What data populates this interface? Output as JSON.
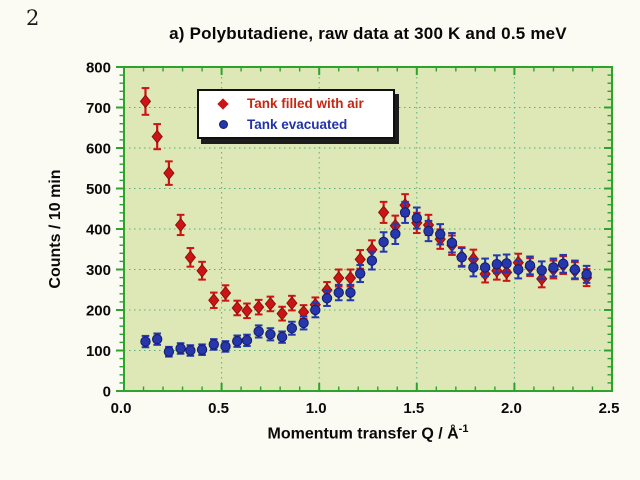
{
  "page_number": "2",
  "chart": {
    "title": "a) Polybutadiene, raw data at 300 K and 0.5 meV",
    "ylabel": "Counts / 10 min",
    "xlabel_main": "Momentum transfer Q / Å",
    "xlabel_sup": "-1"
  },
  "colors": {
    "plot_background": "#dde8b6",
    "frame_green": "#2da32d",
    "grid_green": "#53b17a",
    "series_air_red": "#cc1414",
    "series_vac_blue": "#2636ad",
    "text_black": "#0a0a0a"
  },
  "chart_data": {
    "type": "scatter",
    "title": "a) Polybutadiene, raw data at 300 K and 0.5 meV",
    "xlabel": "Momentum transfer Q / Å⁻¹",
    "ylabel": "Counts / 10 min",
    "xlim": [
      0.0,
      2.5
    ],
    "ylim": [
      0,
      800
    ],
    "x_ticks": [
      0.0,
      0.5,
      1.0,
      1.5,
      2.0,
      2.5
    ],
    "x_tick_labels": [
      "0.0",
      "0.5",
      "1.0",
      "1.5",
      "2.0",
      "2.5"
    ],
    "y_ticks": [
      0,
      100,
      200,
      300,
      400,
      500,
      600,
      700,
      800
    ],
    "x_minor_step": 0.1,
    "y_minor_step": 20,
    "grid": true,
    "error_bars": true,
    "legend_position": "upper-left-inside",
    "x": [
      0.11,
      0.17,
      0.23,
      0.29,
      0.34,
      0.4,
      0.46,
      0.52,
      0.58,
      0.63,
      0.69,
      0.75,
      0.81,
      0.86,
      0.92,
      0.98,
      1.04,
      1.1,
      1.16,
      1.21,
      1.27,
      1.33,
      1.39,
      1.44,
      1.5,
      1.56,
      1.62,
      1.68,
      1.73,
      1.79,
      1.85,
      1.91,
      1.96,
      2.02,
      2.08,
      2.14,
      2.2,
      2.25,
      2.31,
      2.37
    ],
    "series": [
      {
        "name": "Tank filled with air",
        "marker": "diamond",
        "color": "#cc1414",
        "values": [
          715,
          628,
          538,
          410,
          330,
          297,
          224,
          242,
          205,
          198,
          207,
          215,
          191,
          217,
          195,
          213,
          249,
          279,
          279,
          325,
          349,
          441,
          408,
          459,
          415,
          410,
          375,
          360,
          332,
          326,
          289,
          297,
          293,
          317,
          306,
          277,
          300,
          311,
          297,
          280
        ],
        "errors": [
          33,
          31,
          29,
          25,
          23,
          22,
          19,
          19,
          18,
          18,
          18,
          18,
          17,
          18,
          17,
          18,
          20,
          21,
          21,
          23,
          23,
          26,
          25,
          27,
          25,
          25,
          24,
          24,
          23,
          23,
          21,
          22,
          21,
          22,
          22,
          21,
          22,
          22,
          21,
          21
        ]
      },
      {
        "name": "Tank evacuated",
        "marker": "circle",
        "color": "#2636ad",
        "values": [
          122,
          128,
          97,
          105,
          100,
          102,
          115,
          110,
          123,
          125,
          147,
          140,
          133,
          155,
          168,
          200,
          229,
          243,
          243,
          290,
          322,
          368,
          388,
          441,
          427,
          395,
          387,
          366,
          330,
          305,
          305,
          313,
          315,
          300,
          310,
          298,
          305,
          314,
          300,
          288
        ],
        "errors": [
          14,
          14,
          12,
          13,
          13,
          13,
          13,
          13,
          14,
          14,
          15,
          15,
          14,
          16,
          16,
          18,
          19,
          19,
          19,
          21,
          22,
          24,
          25,
          26,
          26,
          25,
          25,
          24,
          23,
          22,
          22,
          22,
          22,
          22,
          22,
          22,
          22,
          22,
          22,
          21
        ]
      }
    ]
  }
}
